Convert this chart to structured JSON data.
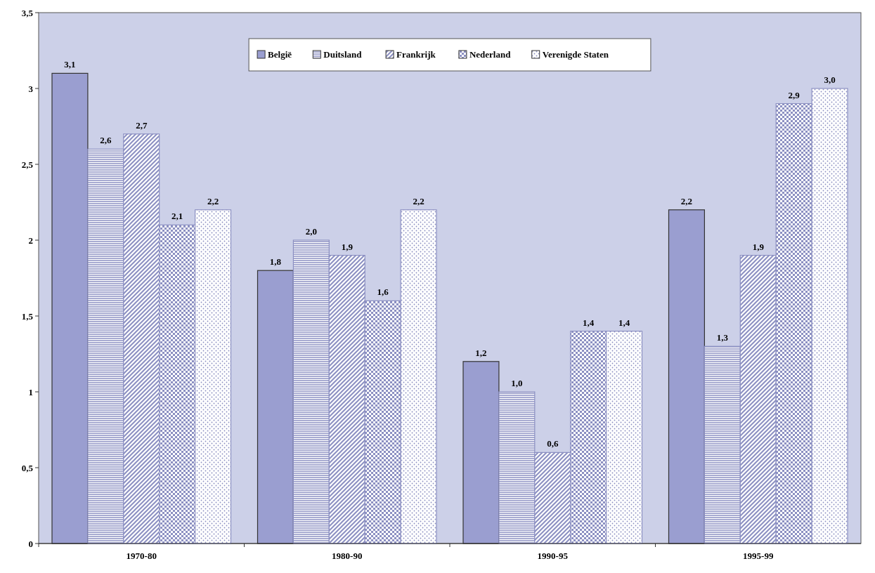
{
  "chart_data": {
    "type": "bar",
    "categories": [
      "1970-80",
      "1980-90",
      "1990-95",
      "1995-99"
    ],
    "series": [
      {
        "name": "België",
        "color": "#9a9ed0",
        "values": [
          3.1,
          1.8,
          1.2,
          2.2
        ],
        "value_labels": [
          "3,1",
          "1,8",
          "1,2",
          "2,2"
        ]
      },
      {
        "name": "Duitsland",
        "color": "#8c90c2",
        "values": [
          2.6,
          2.0,
          1.0,
          1.3
        ],
        "value_labels": [
          "2,6",
          "2,0",
          "1,0",
          "1,3"
        ]
      },
      {
        "name": "Frankrijk",
        "color": "#8c90c2",
        "values": [
          2.7,
          1.9,
          0.6,
          1.9
        ],
        "value_labels": [
          "2,7",
          "1,9",
          "0,6",
          "1,9"
        ]
      },
      {
        "name": "Nederland",
        "color": "#8c90c2",
        "values": [
          2.1,
          1.6,
          1.4,
          2.9
        ],
        "value_labels": [
          "2,1",
          "1,6",
          "1,4",
          "2,9"
        ]
      },
      {
        "name": "Verenigde Staten",
        "color": "#8c90c2",
        "values": [
          2.2,
          2.2,
          1.4,
          3.0
        ],
        "value_labels": [
          "2,2",
          "2,2",
          "1,4",
          "3,0"
        ]
      }
    ],
    "ylim": [
      0,
      3.5
    ],
    "yticks": [
      0,
      {
        "value": 0.5,
        "label": "0,5"
      },
      1,
      {
        "value": 1.5,
        "label": "1,5"
      },
      2,
      {
        "value": 2.5,
        "label": "2,5"
      },
      3,
      {
        "value": 3.5,
        "label": "3,5"
      }
    ],
    "grid": false,
    "legend": "top"
  }
}
